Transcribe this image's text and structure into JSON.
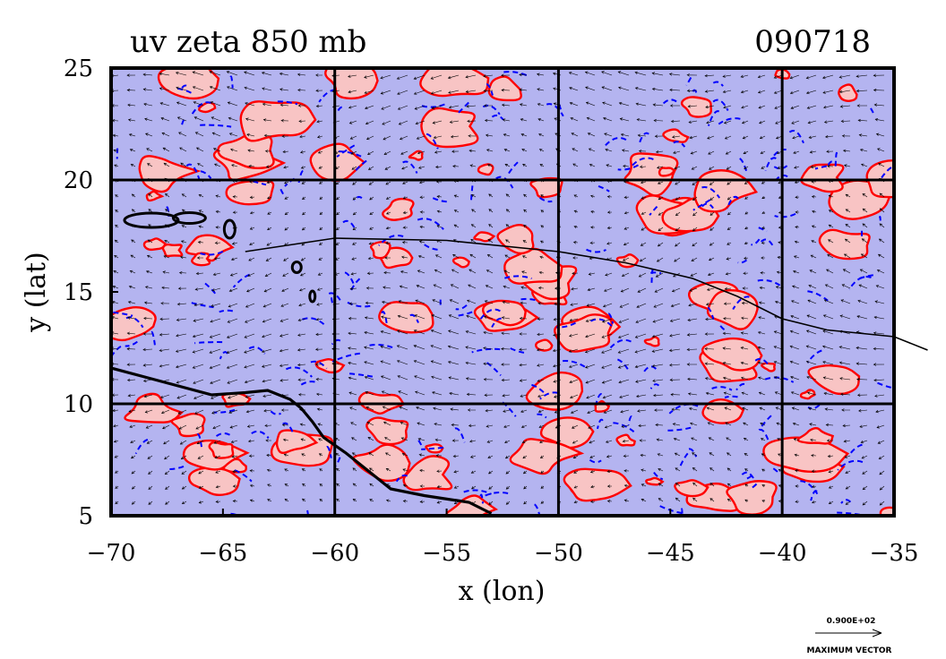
{
  "chart_data": {
    "type": "heatmap",
    "title": "uv zeta 850 mb",
    "date_label": "090718",
    "xlabel": "x (lon)",
    "ylabel": "y (lat)",
    "xlim": [
      -70,
      -35
    ],
    "ylim": [
      5,
      25
    ],
    "x_ticks": [
      -70,
      -65,
      -60,
      -55,
      -50,
      -45,
      -40,
      -35
    ],
    "y_ticks": [
      5,
      10,
      15,
      20,
      25
    ],
    "grid_lines_x": [
      -60,
      -50,
      -40
    ],
    "grid_lines_y": [
      10,
      20
    ],
    "fill_colors": {
      "positive": "#f8c4c4",
      "negative": "#b4b4f0"
    },
    "contour_colors": {
      "positive": "#ff0000",
      "negative": "#0000ff"
    },
    "track": [
      [
        -64,
        16.8
      ],
      [
        -60,
        17.4
      ],
      [
        -55,
        17.3
      ],
      [
        -50,
        16.8
      ],
      [
        -47,
        16.3
      ],
      [
        -44,
        15.6
      ],
      [
        -42,
        14.8
      ],
      [
        -40,
        13.8
      ],
      [
        -38,
        13.3
      ],
      [
        -35,
        13.0
      ],
      [
        -33.5,
        12.4
      ]
    ],
    "vector_legend": {
      "value_label": "0.900E+02",
      "caption": "MAXIMUM VECTOR"
    }
  }
}
